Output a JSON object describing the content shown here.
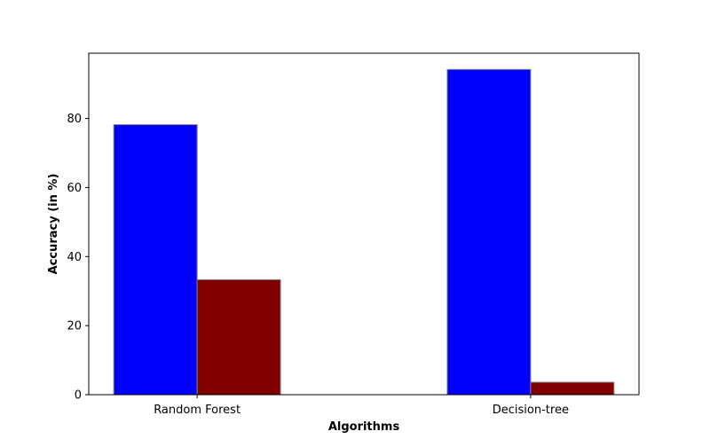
{
  "chart_data": {
    "type": "bar",
    "title": "",
    "xlabel": "Algorithms",
    "ylabel": "Accuracy (in %)",
    "categories": [
      "Random Forest",
      "Decision-tree"
    ],
    "series": [
      {
        "values": [
          78.2,
          94.2
        ],
        "color": "#0000ff"
      },
      {
        "values": [
          33.3,
          3.6
        ],
        "color": "#800000"
      }
    ],
    "ylim": [
      0,
      98.9
    ],
    "yticks": [
      0,
      20,
      40,
      60,
      80
    ],
    "grid": false,
    "bar_edge_color": "#808080"
  }
}
